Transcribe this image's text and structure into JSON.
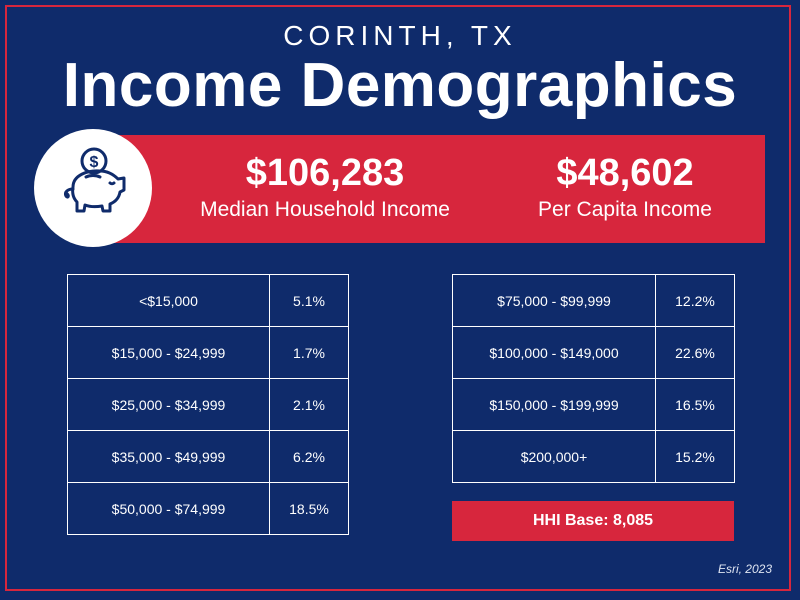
{
  "header": {
    "location": "CORINTH, TX",
    "title": "Income Demographics"
  },
  "stats": {
    "median_household": {
      "value": "$106,283",
      "label": "Median Household Income"
    },
    "per_capita": {
      "value": "$48,602",
      "label": "Per Capita Income"
    }
  },
  "icons": {
    "piggy_bank": "piggy-bank-icon",
    "coin_symbol": "$"
  },
  "table_left": [
    {
      "range": "<$15,000",
      "pct": "5.1%"
    },
    {
      "range": "$15,000 - $24,999",
      "pct": "1.7%"
    },
    {
      "range": "$25,000 - $34,999",
      "pct": "2.1%"
    },
    {
      "range": "$35,000 - $49,999",
      "pct": "6.2%"
    },
    {
      "range": "$50,000 - $74,999",
      "pct": "18.5%"
    }
  ],
  "table_right": [
    {
      "range": "$75,000 - $99,999",
      "pct": "12.2%"
    },
    {
      "range": "$100,000 - $149,000",
      "pct": "22.6%"
    },
    {
      "range": "$150,000 - $199,999",
      "pct": "16.5%"
    },
    {
      "range": "$200,000+",
      "pct": "15.2%"
    }
  ],
  "hhi_base": "HHI Base: 8,085",
  "source": "Esri, 2023",
  "colors": {
    "background": "#0f2b6b",
    "accent_red": "#d7263d",
    "text": "#ffffff"
  }
}
